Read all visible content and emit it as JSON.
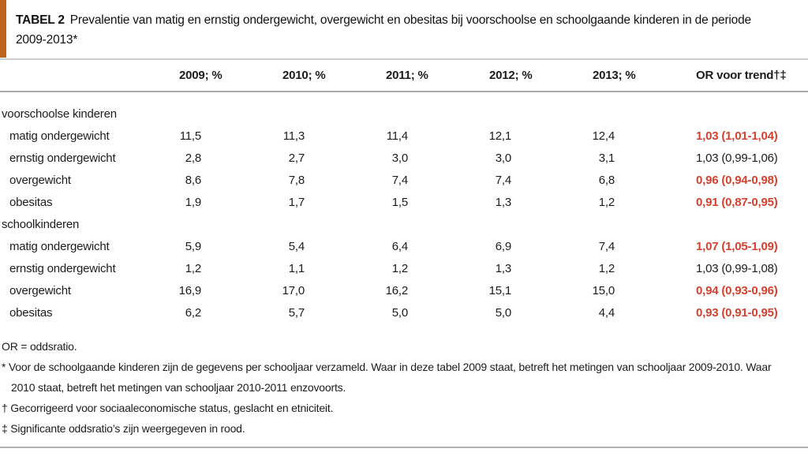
{
  "colors": {
    "accent_bar": "#bf641e",
    "significant_red": "#d6402e",
    "rule_gray": "#b3b3b3"
  },
  "title": {
    "label": "TABEL 2",
    "line1": "Prevalentie van matig en ernstig ondergewicht, overgewicht en obesitas bij voorschoolse en schoolgaande kinderen in de periode",
    "line2": "2009-2013*"
  },
  "table": {
    "columns": [
      "2009; %",
      "2010; %",
      "2011; %",
      "2012; %",
      "2013; %",
      "OR voor trend†‡"
    ],
    "sections": [
      {
        "label": "voorschoolse kinderen",
        "rows": [
          {
            "label": "matig ondergewicht",
            "values": [
              "11,5",
              "11,3",
              "11,4",
              "12,1",
              "12,4"
            ],
            "or": "1,03 (1,01-1,04)",
            "significant": true
          },
          {
            "label": "ernstig ondergewicht",
            "values": [
              "2,8",
              "2,7",
              "3,0",
              "3,0",
              "3,1"
            ],
            "or": "1,03 (0,99-1,06)",
            "significant": false
          },
          {
            "label": "overgewicht",
            "values": [
              "8,6",
              "7,8",
              "7,4",
              "7,4",
              "6,8"
            ],
            "or": "0,96 (0,94-0,98)",
            "significant": true
          },
          {
            "label": "obesitas",
            "values": [
              "1,9",
              "1,7",
              "1,5",
              "1,3",
              "1,2"
            ],
            "or": "0,91 (0,87-0,95)",
            "significant": true
          }
        ]
      },
      {
        "label": "schoolkinderen",
        "rows": [
          {
            "label": "matig ondergewicht",
            "values": [
              "5,9",
              "5,4",
              "6,4",
              "6,9",
              "7,4"
            ],
            "or": "1,07 (1,05-1,09)",
            "significant": true
          },
          {
            "label": "ernstig ondergewicht",
            "values": [
              "1,2",
              "1,1",
              "1,2",
              "1,3",
              "1,2"
            ],
            "or": "1,03 (0,99-1,08)",
            "significant": false
          },
          {
            "label": "overgewicht",
            "values": [
              "16,9",
              "17,0",
              "16,2",
              "15,1",
              "15,0"
            ],
            "or": "0,94 (0,93-0,96)",
            "significant": true
          },
          {
            "label": "obesitas",
            "values": [
              "6,2",
              "5,7",
              "5,0",
              "5,0",
              "4,4"
            ],
            "or": "0,93 (0,91-0,95)",
            "significant": true
          }
        ]
      }
    ]
  },
  "footnotes": [
    {
      "text": "OR = oddsratio."
    },
    {
      "text": "* Voor de schoolgaande kinderen zijn de gegevens per schooljaar verzameld. Waar in deze tabel 2009 staat, betreft het metingen van schooljaar 2009-2010. Waar"
    },
    {
      "text": "2010 staat, betreft het metingen van schooljaar 2010-2011 enzovoorts.",
      "indent": true
    },
    {
      "text": "† Gecorrigeerd voor sociaaleconomische status, geslacht en etniciteit."
    },
    {
      "text": "‡ Significante oddsratio’s zijn weergegeven in rood."
    }
  ]
}
